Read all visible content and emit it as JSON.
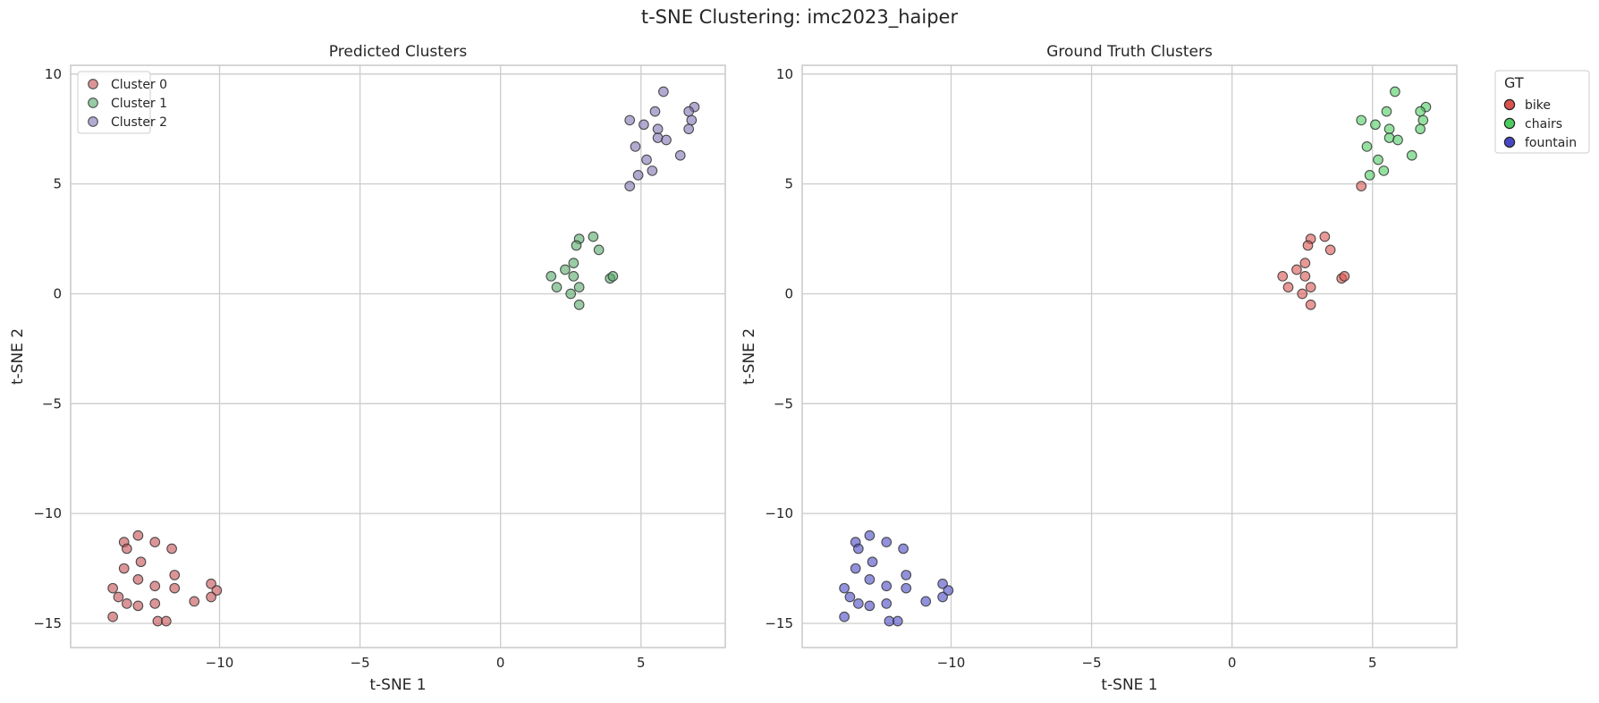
{
  "figure": {
    "suptitle": "t-SNE Clustering: imc2023_haiper"
  },
  "chart_data": [
    {
      "type": "scatter",
      "title": "Predicted Clusters",
      "xlabel": "t-SNE 1",
      "ylabel": "t-SNE 2",
      "xlim": [
        -15.3,
        8.0
      ],
      "ylim": [
        -16.1,
        10.4
      ],
      "xticks": [
        -10,
        -5,
        0,
        5
      ],
      "yticks": [
        -15,
        -10,
        -5,
        0,
        5,
        10
      ],
      "xtick_labels": [
        "−10",
        "−5",
        "0",
        "5"
      ],
      "ytick_labels": [
        "−15",
        "−10",
        "−5",
        "0",
        "5",
        "10"
      ],
      "grid": true,
      "legend": {
        "title": "",
        "placement": "top-left",
        "marker_alpha": 0.6
      },
      "point_alpha": 0.6,
      "series": [
        {
          "name": "Cluster 0",
          "color": "#c44e52",
          "points": [
            [
              -13.4,
              -11.3
            ],
            [
              -12.9,
              -11.0
            ],
            [
              -12.3,
              -11.3
            ],
            [
              -11.7,
              -11.6
            ],
            [
              -13.3,
              -11.6
            ],
            [
              -13.4,
              -12.5
            ],
            [
              -12.8,
              -12.2
            ],
            [
              -11.6,
              -12.8
            ],
            [
              -12.9,
              -13.0
            ],
            [
              -12.3,
              -13.3
            ],
            [
              -11.6,
              -13.4
            ],
            [
              -10.3,
              -13.2
            ],
            [
              -10.1,
              -13.5
            ],
            [
              -13.8,
              -13.4
            ],
            [
              -13.6,
              -13.8
            ],
            [
              -13.3,
              -14.1
            ],
            [
              -12.9,
              -14.2
            ],
            [
              -12.3,
              -14.1
            ],
            [
              -10.9,
              -14.0
            ],
            [
              -10.3,
              -13.8
            ],
            [
              -13.8,
              -14.7
            ],
            [
              -12.2,
              -14.9
            ],
            [
              -11.9,
              -14.9
            ]
          ]
        },
        {
          "name": "Cluster 1",
          "color": "#55a868",
          "points": [
            [
              2.8,
              2.5
            ],
            [
              3.3,
              2.6
            ],
            [
              2.7,
              2.2
            ],
            [
              3.5,
              2.0
            ],
            [
              2.6,
              1.4
            ],
            [
              2.3,
              1.1
            ],
            [
              1.8,
              0.8
            ],
            [
              2.6,
              0.8
            ],
            [
              3.9,
              0.7
            ],
            [
              4.0,
              0.8
            ],
            [
              2.0,
              0.3
            ],
            [
              2.8,
              0.3
            ],
            [
              2.5,
              0.0
            ],
            [
              2.8,
              -0.5
            ]
          ]
        },
        {
          "name": "Cluster 2",
          "color": "#8172b3",
          "points": [
            [
              5.8,
              9.2
            ],
            [
              6.9,
              8.5
            ],
            [
              6.7,
              8.3
            ],
            [
              5.5,
              8.3
            ],
            [
              4.6,
              7.9
            ],
            [
              6.8,
              7.9
            ],
            [
              5.1,
              7.7
            ],
            [
              5.6,
              7.5
            ],
            [
              6.7,
              7.5
            ],
            [
              5.6,
              7.1
            ],
            [
              5.9,
              7.0
            ],
            [
              4.8,
              6.7
            ],
            [
              6.4,
              6.3
            ],
            [
              5.2,
              6.1
            ],
            [
              5.4,
              5.6
            ],
            [
              4.9,
              5.4
            ],
            [
              4.6,
              4.9
            ]
          ]
        }
      ]
    },
    {
      "type": "scatter",
      "title": "Ground Truth Clusters",
      "xlabel": "t-SNE 1",
      "ylabel": "t-SNE 2",
      "xlim": [
        -15.3,
        8.0
      ],
      "ylim": [
        -16.1,
        10.4
      ],
      "xticks": [
        -10,
        -5,
        0,
        5
      ],
      "yticks": [
        -15,
        -10,
        -5,
        0,
        5,
        10
      ],
      "xtick_labels": [
        "−10",
        "−5",
        "0",
        "5"
      ],
      "ytick_labels": [
        "−15",
        "−10",
        "−5",
        "0",
        "5",
        "10"
      ],
      "grid": true,
      "legend": {
        "title": "GT",
        "placement": "outside-right",
        "marker_alpha": 1.0
      },
      "point_alpha": 0.6,
      "series": [
        {
          "name": "bike",
          "color": "#d9534f",
          "points": [
            [
              2.8,
              2.5
            ],
            [
              3.3,
              2.6
            ],
            [
              2.7,
              2.2
            ],
            [
              3.5,
              2.0
            ],
            [
              2.6,
              1.4
            ],
            [
              2.3,
              1.1
            ],
            [
              1.8,
              0.8
            ],
            [
              2.6,
              0.8
            ],
            [
              3.9,
              0.7
            ],
            [
              4.0,
              0.8
            ],
            [
              2.0,
              0.3
            ],
            [
              2.8,
              0.3
            ],
            [
              2.5,
              0.0
            ],
            [
              2.8,
              -0.5
            ],
            [
              4.6,
              4.9
            ]
          ]
        },
        {
          "name": "chairs",
          "color": "#4ccc60",
          "points": [
            [
              5.8,
              9.2
            ],
            [
              6.9,
              8.5
            ],
            [
              6.7,
              8.3
            ],
            [
              5.5,
              8.3
            ],
            [
              4.6,
              7.9
            ],
            [
              6.8,
              7.9
            ],
            [
              5.1,
              7.7
            ],
            [
              5.6,
              7.5
            ],
            [
              6.7,
              7.5
            ],
            [
              5.6,
              7.1
            ],
            [
              5.9,
              7.0
            ],
            [
              4.8,
              6.7
            ],
            [
              6.4,
              6.3
            ],
            [
              5.2,
              6.1
            ],
            [
              5.4,
              5.6
            ],
            [
              4.9,
              5.4
            ]
          ]
        },
        {
          "name": "fountain",
          "color": "#4a47c4",
          "points": [
            [
              -13.4,
              -11.3
            ],
            [
              -12.9,
              -11.0
            ],
            [
              -12.3,
              -11.3
            ],
            [
              -11.7,
              -11.6
            ],
            [
              -13.3,
              -11.6
            ],
            [
              -13.4,
              -12.5
            ],
            [
              -12.8,
              -12.2
            ],
            [
              -11.6,
              -12.8
            ],
            [
              -12.9,
              -13.0
            ],
            [
              -12.3,
              -13.3
            ],
            [
              -11.6,
              -13.4
            ],
            [
              -10.3,
              -13.2
            ],
            [
              -10.1,
              -13.5
            ],
            [
              -13.8,
              -13.4
            ],
            [
              -13.6,
              -13.8
            ],
            [
              -13.3,
              -14.1
            ],
            [
              -12.9,
              -14.2
            ],
            [
              -12.3,
              -14.1
            ],
            [
              -10.9,
              -14.0
            ],
            [
              -10.3,
              -13.8
            ],
            [
              -13.8,
              -14.7
            ],
            [
              -12.2,
              -14.9
            ],
            [
              -11.9,
              -14.9
            ]
          ]
        }
      ]
    }
  ]
}
